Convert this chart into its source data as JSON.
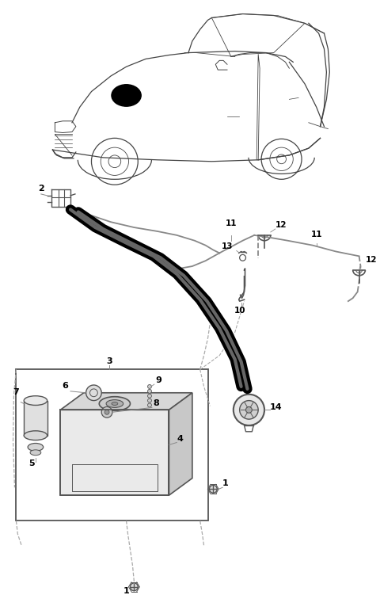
{
  "bg_color": "#ffffff",
  "fig_width": 4.8,
  "fig_height": 7.75,
  "dpi": 100,
  "car_color": "#444444",
  "part_color": "#555555",
  "tube_color": "#888888",
  "hose_color": "#111111"
}
